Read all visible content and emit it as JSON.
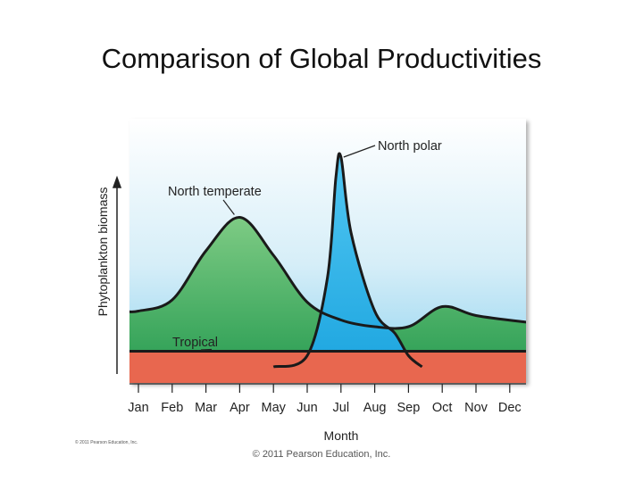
{
  "slide": {
    "title": "Comparison of Global Productivities",
    "footer": "© 2011 Pearson Education, Inc.",
    "small_copyright": "© 2011 Pearson Education, Inc."
  },
  "chart_data": {
    "type": "area",
    "title": "",
    "xlabel": "Month",
    "ylabel": "Phytoplankton biomass",
    "categories": [
      "Jan",
      "Feb",
      "Mar",
      "Apr",
      "May",
      "Jun",
      "Jul",
      "Aug",
      "Sep",
      "Oct",
      "Nov",
      "Dec"
    ],
    "ylim": [
      0,
      100
    ],
    "series": [
      {
        "name": "North temperate",
        "color": "#5fb86f",
        "x": [
          0,
          1.0,
          2.0,
          3.0,
          4.0,
          5.0,
          6.0,
          7.0,
          8.0,
          9.0,
          10.0,
          11.5
        ],
        "values": [
          25,
          30,
          52,
          67,
          50,
          29,
          21,
          18,
          18,
          27,
          23,
          20
        ]
      },
      {
        "name": "North polar",
        "color": "#2eb6ea",
        "x": [
          4.0,
          5.0,
          5.6,
          5.85,
          6.0,
          6.3,
          7.0,
          7.6,
          8.0,
          8.4
        ],
        "values": [
          0,
          5,
          40,
          85,
          94,
          60,
          25,
          15,
          5,
          0
        ]
      },
      {
        "name": "Tropical",
        "color": "#e8674f",
        "x": [
          0,
          11.5
        ],
        "values": [
          7,
          7
        ]
      }
    ],
    "legend": "labels on curves"
  }
}
